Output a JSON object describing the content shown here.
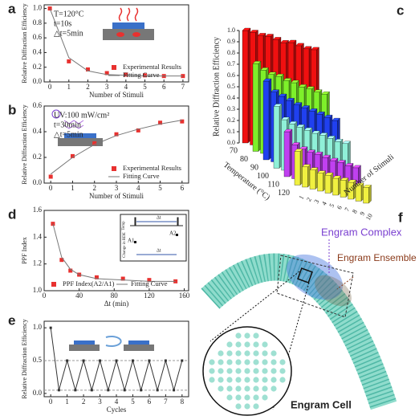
{
  "chart_data": [
    {
      "type": "scatter",
      "label": "a",
      "xlabel": "Number of Stimuli",
      "ylabel": "Relative Diffraction Efficiency",
      "annotations": [
        "T=120°C",
        "t=10s",
        "△t=5min"
      ],
      "x": [
        0,
        1,
        2,
        3,
        4,
        5,
        6,
        7
      ],
      "series": [
        {
          "name": "Experimental Results",
          "color": "#e8312f",
          "style": "marker",
          "values": [
            1.0,
            0.28,
            0.17,
            0.12,
            0.1,
            0.09,
            0.08,
            0.08
          ]
        },
        {
          "name": "Fitting Curve",
          "color": "#777777",
          "style": "line",
          "values": [
            1.0,
            0.33,
            0.15,
            0.1,
            0.09,
            0.08,
            0.08,
            0.08
          ]
        }
      ],
      "xlim": [
        -0.3,
        7.3
      ],
      "xticks": [
        0,
        1,
        2,
        3,
        4,
        5,
        6,
        7
      ],
      "ylim": [
        0,
        1.05
      ],
      "yticks": [
        {
          "value": 0,
          "label": "0.0"
        },
        0.2,
        0.4,
        0.6,
        0.8,
        {
          "value": 1,
          "label": "1.0"
        }
      ],
      "legend": "lower right"
    },
    {
      "type": "scatter",
      "label": "b",
      "xlabel": "Number of Stimuli",
      "ylabel": "Relative Diffraction Efficiency",
      "annotations": [
        "UV:100 mW/cm²",
        "t=30min",
        "△t=5min"
      ],
      "x": [
        0,
        1,
        2,
        3,
        4,
        5,
        6
      ],
      "series": [
        {
          "name": "Experimental Results",
          "color": "#e8312f",
          "style": "marker",
          "values": [
            0.05,
            0.21,
            0.31,
            0.38,
            0.41,
            0.47,
            0.48
          ]
        },
        {
          "name": "Fitting Curve",
          "color": "#777777",
          "style": "line",
          "values": [
            0.07,
            0.2,
            0.3,
            0.37,
            0.42,
            0.46,
            0.49
          ]
        }
      ],
      "xlim": [
        -0.3,
        6.3
      ],
      "xticks": [
        0,
        1,
        2,
        3,
        4,
        5,
        6
      ],
      "ylim": [
        0,
        0.6
      ],
      "yticks": [
        {
          "value": 0,
          "label": "0.0"
        },
        0.2,
        0.4,
        0.6
      ],
      "legend": "lower right"
    },
    {
      "type": "bar3d",
      "label": "c",
      "zlabel": "Relative Diffraction Efficiency",
      "xlabel": "Temperature (°C)",
      "ylabel": "Number of Stimuli",
      "categories": [
        "1",
        "2",
        "3",
        "4",
        "5",
        "6",
        "7",
        "8",
        "9",
        "10"
      ],
      "series": [
        {
          "name": "70",
          "color": "#f01010",
          "values": [
            1.0,
            1.0,
            0.99,
            1.0,
            0.99,
            0.98,
            1.0,
            0.99,
            0.98,
            0.99
          ]
        },
        {
          "name": "80",
          "color": "#7ef02a",
          "values": [
            0.78,
            0.74,
            0.72,
            0.72,
            0.7,
            0.7,
            0.68,
            0.68,
            0.67,
            0.67
          ]
        },
        {
          "name": "90",
          "color": "#2040f0",
          "values": [
            0.7,
            0.62,
            0.6,
            0.58,
            0.56,
            0.55,
            0.54,
            0.53,
            0.52,
            0.51
          ]
        },
        {
          "name": "100",
          "color": "#8ff0d8",
          "values": [
            0.55,
            0.45,
            0.43,
            0.42,
            0.41,
            0.4,
            0.4,
            0.39,
            0.38,
            0.38
          ]
        },
        {
          "name": "110",
          "color": "#c040f0",
          "values": [
            0.4,
            0.3,
            0.28,
            0.27,
            0.27,
            0.26,
            0.25,
            0.25,
            0.24,
            0.24
          ]
        },
        {
          "name": "120",
          "color": "#f0f040",
          "values": [
            0.3,
            0.18,
            0.17,
            0.16,
            0.16,
            0.15,
            0.15,
            0.15,
            0.14,
            0.14
          ]
        }
      ],
      "zlim": [
        0,
        1
      ],
      "zticks": [
        {
          "value": 0,
          "label": "0.0"
        },
        0.1,
        0.2,
        0.3,
        0.4,
        0.5,
        0.6,
        0.7,
        0.8,
        0.9,
        {
          "value": 1,
          "label": "1.0"
        }
      ]
    },
    {
      "type": "scatter",
      "label": "d",
      "xlabel": "Δt (min)",
      "ylabel": "PPF Index",
      "inset_labels": [
        "Temp",
        "Δt",
        "Change in RDE",
        "A1",
        "A2",
        "Δt"
      ],
      "x": [
        10,
        20,
        30,
        40,
        60,
        90,
        120,
        150
      ],
      "series": [
        {
          "name": "PPF Index(A2/A1)",
          "color": "#e8312f",
          "style": "marker",
          "values": [
            1.5,
            1.23,
            1.15,
            1.12,
            1.1,
            1.09,
            1.08,
            1.07
          ]
        },
        {
          "name": "Fitting Curve",
          "color": "#777777",
          "style": "line",
          "values": [
            1.5,
            1.25,
            1.16,
            1.12,
            1.09,
            1.08,
            1.07,
            1.07
          ]
        }
      ],
      "xlim": [
        0,
        165
      ],
      "xticks": [
        0,
        40,
        80,
        120,
        160
      ],
      "ylim": [
        1.0,
        1.6
      ],
      "yticks": [
        {
          "value": 1,
          "label": "1.0"
        },
        1.2,
        1.4,
        1.6
      ],
      "legend": "lower center"
    },
    {
      "type": "line",
      "label": "e",
      "xlabel": "Cycles",
      "ylabel": "Relative Diffraction Efficiency",
      "x": [
        0,
        0.5,
        1,
        1.5,
        2,
        2.5,
        3,
        3.5,
        4,
        4.5,
        5,
        5.5,
        6,
        6.5,
        7,
        7.5,
        8
      ],
      "series": [
        {
          "color": "#333333",
          "style": "line+marker",
          "values": [
            1.0,
            0.05,
            0.5,
            0.05,
            0.5,
            0.05,
            0.5,
            0.05,
            0.5,
            0.05,
            0.5,
            0.05,
            0.5,
            0.05,
            0.5,
            0.05,
            0.5
          ]
        }
      ],
      "reference_lines": [
        0.5,
        0.05
      ],
      "xlim": [
        -0.4,
        8.4
      ],
      "xticks": [
        0,
        1,
        2,
        3,
        4,
        5,
        6,
        7,
        8
      ],
      "ylim": [
        -0.05,
        1.1
      ],
      "yticks": [
        {
          "value": 0,
          "label": "0.0"
        },
        0.5,
        {
          "value": 1,
          "label": "1.0"
        }
      ]
    }
  ],
  "diagram": {
    "label": "f",
    "complex": "Engram Complex",
    "ensemble": "Engram Ensemble",
    "cell": "Engram Cell"
  }
}
